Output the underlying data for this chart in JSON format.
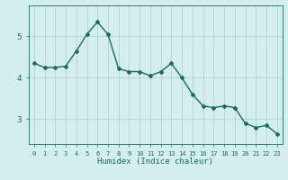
{
  "x": [
    0,
    1,
    2,
    3,
    4,
    5,
    6,
    7,
    8,
    9,
    10,
    11,
    12,
    13,
    14,
    15,
    16,
    17,
    18,
    19,
    20,
    21,
    22,
    23
  ],
  "y": [
    4.35,
    4.25,
    4.25,
    4.28,
    4.65,
    5.05,
    5.35,
    5.05,
    4.22,
    4.15,
    4.15,
    4.05,
    4.15,
    4.35,
    4.0,
    3.6,
    3.32,
    3.28,
    3.32,
    3.28,
    2.9,
    2.8,
    2.85,
    2.65
  ],
  "line_color": "#1a6b5a",
  "bg_color": "#d4eeec",
  "grid_color": "#aed4d0",
  "xlabel": "Humidex (Indice chaleur)",
  "yticks": [
    3,
    4,
    5
  ],
  "xtick_labels": [
    "0",
    "1",
    "2",
    "3",
    "4",
    "5",
    "6",
    "7",
    "8",
    "9",
    "10",
    "11",
    "12",
    "13",
    "14",
    "15",
    "16",
    "17",
    "18",
    "19",
    "20",
    "21",
    "22",
    "23"
  ],
  "xlim": [
    -0.5,
    23.5
  ],
  "ylim": [
    2.4,
    5.75
  ],
  "marker": "D",
  "markersize": 2.0,
  "linewidth": 1.0
}
